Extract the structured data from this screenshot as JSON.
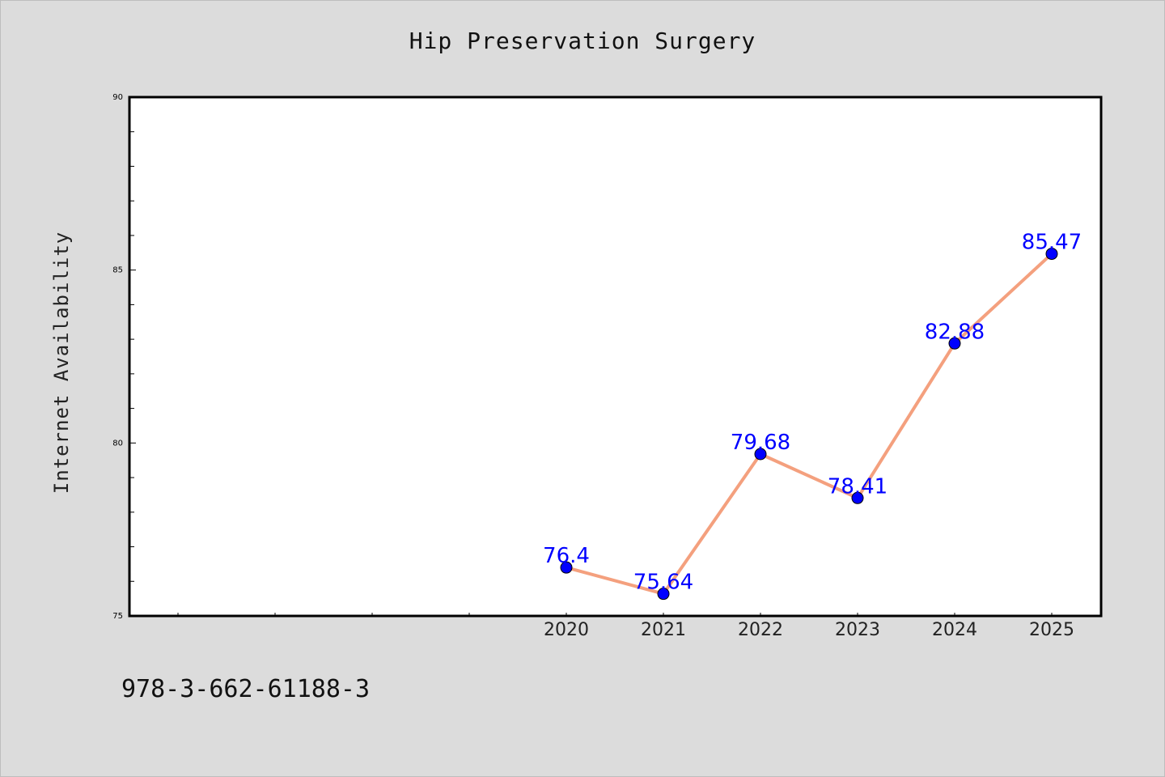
{
  "chart_data": {
    "type": "line",
    "title": "Hip Preservation Surgery",
    "xlabel": "",
    "ylabel": "Internet Availability",
    "categories": [
      "2020",
      "2021",
      "2022",
      "2023",
      "2024",
      "2025"
    ],
    "values": [
      76.4,
      75.64,
      79.68,
      78.41,
      82.88,
      85.47
    ],
    "data_labels": [
      "76.4",
      "75.64",
      "79.68",
      "78.41",
      "82.88",
      "85.47"
    ],
    "ylim": [
      75,
      90
    ],
    "yticks": [
      "75",
      "80",
      "85",
      "90"
    ],
    "grid": false,
    "line_color": "#f4a07e",
    "marker_color": "#0000ff",
    "label_color": "#0000ff"
  },
  "footer": {
    "isbn": "978-3-662-61188-3"
  }
}
